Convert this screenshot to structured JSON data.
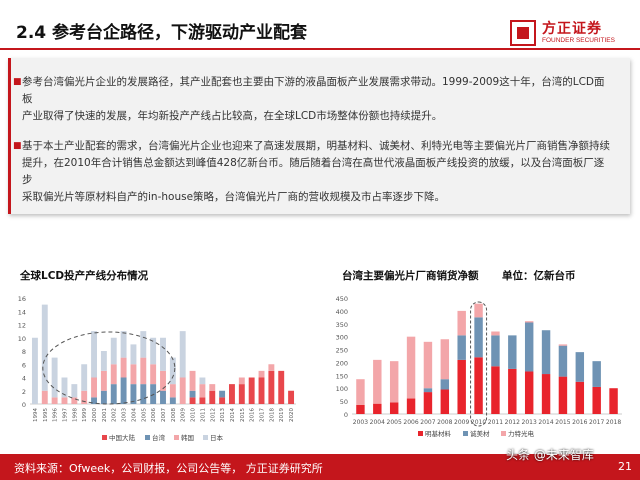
{
  "header": {
    "title": "2.4 参考台企路径，下游驱动产业配套",
    "logo_cn": "方正证券",
    "logo_en": "FOUNDER SECURITIES"
  },
  "summary": {
    "paragraphs": [
      [
        "参考台湾偏光片企业的发展路径，其产业配套也主要由下游的液晶面板产业发展需求带动。1999-2009这十年，台湾的LCD面板",
        "产业取得了快速的发展，年均新投产产线占比较高，在全球LCD市场整体份额也持续提升。"
      ],
      [
        "基于本土产业配套的需求，台湾偏光片企业也迎来了高速发展期，明基材料、诚美材、利特光电等主要偏光片厂商销售净额持续",
        "提升，在2010年合计销售总金额达到峰值428亿新台币。随后随着台湾在高世代液晶面板产线投资的放缓，以及台湾面板厂逐步",
        "采取偏光片等原材料自产的in-house策略，台湾偏光片厂商的营收规模及市占率逐步下降。"
      ]
    ]
  },
  "chart_left": {
    "title": "全球LCD投产产线分布情况",
    "chart_data": {
      "type": "bar",
      "categories": [
        "1994",
        "1995",
        "1996",
        "1997",
        "1998",
        "1999",
        "2000",
        "2001",
        "2002",
        "2003",
        "2004",
        "2005",
        "2006",
        "2007",
        "2008",
        "2009",
        "2010",
        "2011",
        "2012",
        "2013",
        "2014",
        "2015",
        "2016",
        "2017",
        "2018",
        "2019",
        "2020"
      ],
      "series": [
        {
          "name": "中国大陆",
          "color": "#e8474c",
          "values": [
            0,
            0,
            0,
            0,
            0,
            0,
            0,
            0,
            0,
            0,
            0,
            0,
            0,
            0,
            0,
            0,
            1,
            1,
            2,
            1,
            3,
            3,
            4,
            4,
            5,
            5,
            2
          ]
        },
        {
          "name": "台湾",
          "color": "#6f93b4",
          "values": [
            0,
            0,
            0,
            0,
            0,
            0,
            1,
            2,
            3,
            4,
            3,
            3,
            3,
            2,
            1,
            0,
            1,
            0,
            0,
            1,
            0,
            0,
            0,
            0,
            0,
            0,
            0
          ]
        },
        {
          "name": "韩国",
          "color": "#f3a6a9",
          "values": [
            0,
            2,
            1,
            1,
            1,
            2,
            3,
            3,
            3,
            3,
            3,
            4,
            3,
            3,
            2,
            4,
            3,
            2,
            1,
            0,
            0,
            1,
            0,
            1,
            1,
            0,
            0
          ]
        },
        {
          "name": "日本",
          "color": "#c9d3e0",
          "values": [
            10,
            13,
            6,
            3,
            2,
            4,
            7,
            3,
            4,
            4,
            3,
            4,
            4,
            5,
            4,
            7,
            0,
            1,
            0,
            0,
            0,
            0,
            0,
            0,
            0,
            0,
            0
          ]
        }
      ],
      "ylim": [
        0,
        16
      ],
      "yticks": [
        0,
        2,
        4,
        6,
        8,
        10,
        12,
        14,
        16
      ],
      "legend_position": "bottom"
    }
  },
  "chart_right": {
    "title": "台湾主要偏光片厂商销货净额",
    "unit": "单位：亿新台币",
    "chart_data": {
      "type": "bar",
      "categories": [
        "2003",
        "2004",
        "2005",
        "2006",
        "2007",
        "2008",
        "2009",
        "2010",
        "2011",
        "2012",
        "2013",
        "2014",
        "2015",
        "2016",
        "2017",
        "2018"
      ],
      "series": [
        {
          "name": "明基材料",
          "color": "#e8242c",
          "values": [
            35,
            40,
            45,
            60,
            85,
            95,
            210,
            220,
            185,
            175,
            165,
            155,
            145,
            125,
            105,
            100
          ]
        },
        {
          "name": "诚美材",
          "color": "#6f93b4",
          "values": [
            0,
            0,
            0,
            0,
            15,
            40,
            95,
            155,
            120,
            130,
            190,
            170,
            120,
            115,
            100,
            0
          ]
        },
        {
          "name": "力特光电",
          "color": "#f3a6a9",
          "values": [
            100,
            170,
            160,
            240,
            180,
            155,
            95,
            53,
            15,
            0,
            5,
            0,
            5,
            0,
            0,
            0
          ]
        }
      ],
      "ylim": [
        0,
        450
      ],
      "yticks": [
        0,
        50,
        100,
        150,
        200,
        250,
        300,
        350,
        400,
        450
      ],
      "legend_position": "bottom"
    }
  },
  "footer": {
    "source": "资料来源：Ofweek，公司财报，公司公告等， 方正证券研究所",
    "page_number": "21",
    "watermark": "头条 @未来智库"
  }
}
